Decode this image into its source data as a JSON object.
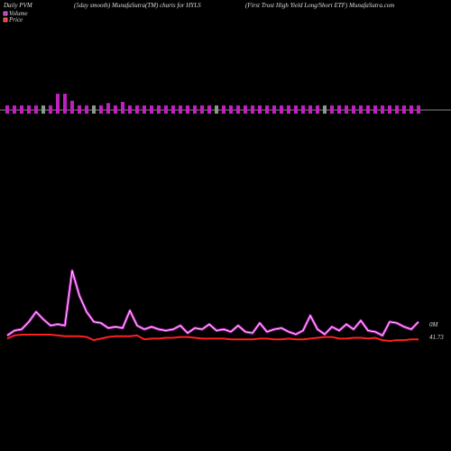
{
  "chart_data": {
    "type": "combo",
    "title": "Daily PVM",
    "subtitle": "(5day smooth) MunafaSutra(TM) charts for HYLS",
    "source": "(First Trust High Yield Long/Short ETF) MunafaSutra.com",
    "volume_bars": [
      7,
      7,
      7,
      7,
      7,
      7,
      7,
      17,
      17,
      11,
      7,
      7,
      7,
      7,
      9,
      7,
      10,
      7,
      7,
      7,
      7,
      7,
      7,
      7,
      7,
      7,
      7,
      7,
      7,
      7,
      7,
      7,
      7,
      7,
      7,
      7,
      7,
      7,
      7,
      7,
      7,
      7,
      7,
      7,
      7,
      7,
      7,
      7,
      7,
      7,
      7,
      7,
      7,
      7,
      7,
      7,
      7,
      7
    ],
    "bar_colors": [
      "#c020c0",
      "#c020c0",
      "#c020c0",
      "#c020c0",
      "#c020c0",
      "#8a9a8a",
      "#c020c0",
      "#c020c0",
      "#c020c0",
      "#c020c0",
      "#c020c0",
      "#c020c0",
      "#8a9a8a",
      "#c020c0",
      "#c020c0",
      "#c020c0",
      "#c020c0",
      "#c020c0",
      "#c020c0",
      "#c020c0",
      "#c020c0",
      "#c020c0",
      "#c020c0",
      "#c020c0",
      "#c020c0",
      "#c020c0",
      "#c020c0",
      "#c020c0",
      "#c020c0",
      "#8a9a8a",
      "#c020c0",
      "#c020c0",
      "#c020c0",
      "#c020c0",
      "#c020c0",
      "#c020c0",
      "#c020c0",
      "#c020c0",
      "#c020c0",
      "#c020c0",
      "#c020c0",
      "#c020c0",
      "#c020c0",
      "#c020c0",
      "#8a9a8a",
      "#c020c0",
      "#c020c0",
      "#c020c0",
      "#c020c0",
      "#c020c0",
      "#c020c0",
      "#c020c0",
      "#c020c0",
      "#c020c0",
      "#c020c0",
      "#c020c0",
      "#c020c0",
      "#c020c0"
    ],
    "series": [
      {
        "name": "Volume",
        "color": "#c020c0",
        "last_label": "0M",
        "values": [
          3,
          7,
          8,
          14,
          22,
          16,
          11,
          12,
          11,
          55,
          35,
          22,
          14,
          13,
          9,
          10,
          9,
          23,
          11,
          8,
          10,
          8,
          7,
          8,
          11,
          5,
          9,
          8,
          12,
          7,
          8,
          6,
          11,
          6,
          5,
          13,
          6,
          8,
          9,
          6,
          4,
          7,
          19,
          8,
          4,
          10,
          7,
          12,
          8,
          15,
          7,
          6,
          3,
          14,
          13,
          10,
          8,
          14
        ]
      },
      {
        "name": "Price",
        "color": "#ff2020",
        "last_label": "41.73",
        "values": [
          41.74,
          41.78,
          41.79,
          41.79,
          41.79,
          41.79,
          41.79,
          41.78,
          41.77,
          41.77,
          41.77,
          41.76,
          41.72,
          41.74,
          41.76,
          41.77,
          41.77,
          41.77,
          41.78,
          41.73,
          41.74,
          41.74,
          41.75,
          41.75,
          41.76,
          41.76,
          41.75,
          41.74,
          41.74,
          41.74,
          41.74,
          41.73,
          41.73,
          41.73,
          41.73,
          41.74,
          41.74,
          41.73,
          41.73,
          41.74,
          41.73,
          41.73,
          41.74,
          41.75,
          41.76,
          41.76,
          41.74,
          41.74,
          41.75,
          41.75,
          41.74,
          41.75,
          41.72,
          41.71,
          41.72,
          41.72,
          41.73,
          41.73
        ]
      }
    ]
  }
}
